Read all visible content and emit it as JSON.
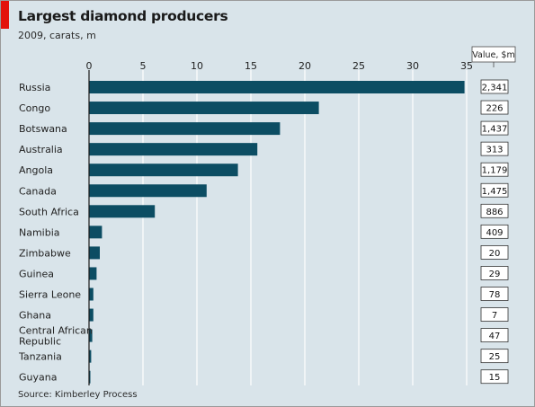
{
  "accent_color": "#e3120b",
  "bar_color": "#0c4d63",
  "chart_data": {
    "type": "bar",
    "orientation": "horizontal",
    "title": "Largest diamond producers",
    "subtitle": "2009, carats, m",
    "source": "Source: Kimberley Process",
    "xlim": [
      0,
      35
    ],
    "xticks": [
      0,
      5,
      10,
      15,
      20,
      25,
      30,
      35
    ],
    "grid": true,
    "value_column_header": "Value, $m",
    "categories": [
      "Russia",
      "Congo",
      "Botswana",
      "Australia",
      "Angola",
      "Canada",
      "South Africa",
      "Namibia",
      "Zimbabwe",
      "Guinea",
      "Sierra Leone",
      "Ghana",
      "Central African Republic",
      "Tanzania",
      "Guyana"
    ],
    "values": [
      34.8,
      21.3,
      17.7,
      15.6,
      13.8,
      10.9,
      6.1,
      1.2,
      1.0,
      0.7,
      0.4,
      0.4,
      0.3,
      0.2,
      0.1
    ],
    "value_labels": [
      "2,341",
      "226",
      "1,437",
      "313",
      "1,179",
      "1,475",
      "886",
      "409",
      "20",
      "29",
      "78",
      "7",
      "47",
      "25",
      "15"
    ]
  }
}
